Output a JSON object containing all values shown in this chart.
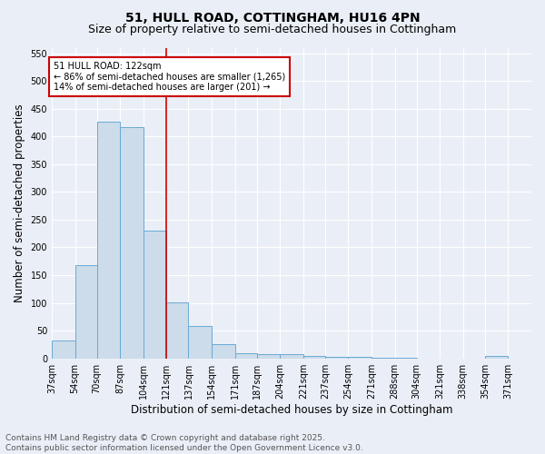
{
  "title1": "51, HULL ROAD, COTTINGHAM, HU16 4PN",
  "title2": "Size of property relative to semi-detached houses in Cottingham",
  "xlabel": "Distribution of semi-detached houses by size in Cottingham",
  "ylabel": "Number of semi-detached properties",
  "footnote": "Contains HM Land Registry data © Crown copyright and database right 2025.\nContains public sector information licensed under the Open Government Licence v3.0.",
  "bar_left_edges": [
    37,
    54,
    70,
    87,
    104,
    121,
    137,
    154,
    171,
    187,
    204,
    221,
    237,
    254,
    271,
    288,
    304,
    321,
    338,
    354
  ],
  "bar_widths": [
    17,
    16,
    17,
    17,
    17,
    16,
    17,
    17,
    16,
    17,
    17,
    16,
    17,
    17,
    17,
    16,
    17,
    17,
    16,
    17
  ],
  "bar_heights": [
    33,
    168,
    427,
    416,
    230,
    101,
    59,
    25,
    9,
    8,
    8,
    5,
    3,
    2,
    1,
    1,
    0,
    0,
    0,
    4
  ],
  "x_tick_labels": [
    "37sqm",
    "54sqm",
    "70sqm",
    "87sqm",
    "104sqm",
    "121sqm",
    "137sqm",
    "154sqm",
    "171sqm",
    "187sqm",
    "204sqm",
    "221sqm",
    "237sqm",
    "254sqm",
    "271sqm",
    "288sqm",
    "304sqm",
    "321sqm",
    "338sqm",
    "354sqm",
    "371sqm"
  ],
  "x_tick_positions": [
    37,
    54,
    70,
    87,
    104,
    121,
    137,
    154,
    171,
    187,
    204,
    221,
    237,
    254,
    271,
    288,
    304,
    321,
    338,
    354,
    371
  ],
  "bar_color": "#ccdcea",
  "bar_edge_color": "#6aaad4",
  "vline_x": 121,
  "vline_color": "#cc0000",
  "annotation_title": "51 HULL ROAD: 122sqm",
  "annotation_line1": "← 86% of semi-detached houses are smaller (1,265)",
  "annotation_line2": "14% of semi-detached houses are larger (201) →",
  "annotation_box_color": "#cc0000",
  "ylim": [
    0,
    560
  ],
  "yticks": [
    0,
    50,
    100,
    150,
    200,
    250,
    300,
    350,
    400,
    450,
    500,
    550
  ],
  "xlim": [
    37,
    388
  ],
  "background_color": "#eaeff7",
  "plot_bg_color": "#eaeff7",
  "grid_color": "#ffffff",
  "title1_fontsize": 10,
  "title2_fontsize": 9,
  "axis_label_fontsize": 8.5,
  "tick_fontsize": 7,
  "footnote_fontsize": 6.5
}
